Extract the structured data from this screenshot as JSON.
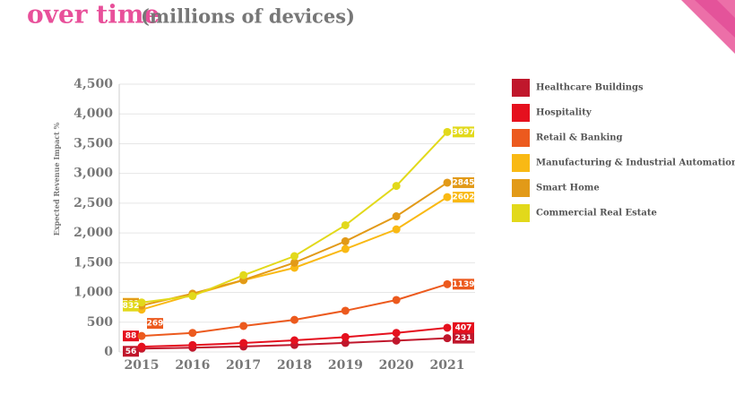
{
  "chart_data": {
    "type": "line",
    "title": "over time",
    "subtitle": "(millions of devices)",
    "y_label": "Expected Revenue Impact %",
    "x": [
      2015,
      2016,
      2017,
      2018,
      2019,
      2020,
      2021
    ],
    "xlim": [
      2015,
      2021
    ],
    "ylim": [
      0,
      4500
    ],
    "yticks": [
      0,
      {
        "value": 500,
        "label": "500"
      },
      {
        "value": 1000,
        "label": "1,000"
      },
      {
        "value": 1500,
        "label": "1,500"
      },
      {
        "value": 2000,
        "label": "2,000"
      },
      {
        "value": 2500,
        "label": "2,500"
      },
      {
        "value": 3000,
        "label": "3,000"
      },
      {
        "value": 3500,
        "label": "3,500"
      },
      {
        "value": 4000,
        "label": "4,000"
      },
      {
        "value": 4500,
        "label": "4,500"
      }
    ],
    "grid": true,
    "legend": "right",
    "series": [
      {
        "name": "Healthcare Buildings",
        "color": "#c0172c",
        "values": [
          56,
          72,
          92,
          118,
          152,
          190,
          231
        ]
      },
      {
        "name": "Hospitality",
        "color": "#e5101e",
        "values": [
          88,
          115,
          150,
          195,
          250,
          320,
          407
        ]
      },
      {
        "name": "Retail & Banking",
        "color": "#ec5a1e",
        "values": [
          269,
          320,
          437,
          540,
          693,
          873,
          1139
        ]
      },
      {
        "name": "Manufacturing & Industrial Automation",
        "color": "#f9b914",
        "values": [
          712,
          960,
          1205,
          1415,
          1730,
          2060,
          2602
        ]
      },
      {
        "name": "Smart Home",
        "color": "#e29a18",
        "values": [
          781,
          980,
          1210,
          1500,
          1860,
          2280,
          2845
        ]
      },
      {
        "name": "Commercial Real Estate",
        "color": "#e2d91b",
        "values": [
          832,
          940,
          1290,
          1610,
          2130,
          2790,
          3697
        ]
      }
    ]
  }
}
